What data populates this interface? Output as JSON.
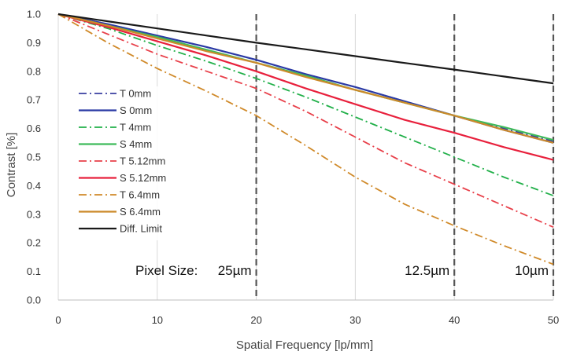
{
  "chart_data": {
    "type": "line",
    "xlabel": "Spatial Frequency [lp/mm]",
    "ylabel": "Contrast [%]",
    "xlim": [
      0,
      50
    ],
    "ylim": [
      0,
      1.0
    ],
    "x_ticks": [
      0,
      10,
      20,
      30,
      40,
      50
    ],
    "y_ticks": [
      0.0,
      0.1,
      0.2,
      0.3,
      0.4,
      0.5,
      0.6,
      0.7,
      0.8,
      0.9,
      1.0
    ],
    "grid": "vertical",
    "legend_position": "left",
    "x": [
      0,
      5,
      10,
      15,
      20,
      25,
      30,
      35,
      40,
      45,
      50
    ],
    "series": [
      {
        "name": "T 0mm",
        "color": "#3a3fa0",
        "dash": "dashdot",
        "values": [
          1.0,
          0.965,
          0.925,
          0.885,
          0.84,
          0.79,
          0.745,
          0.695,
          0.645,
          0.6,
          0.555
        ]
      },
      {
        "name": "S 0mm",
        "color": "#2b3aa5",
        "dash": "solid",
        "values": [
          1.0,
          0.965,
          0.925,
          0.885,
          0.84,
          0.79,
          0.745,
          0.695,
          0.645,
          0.595,
          0.55
        ]
      },
      {
        "name": "T 4mm",
        "color": "#22b04a",
        "dash": "dashdot",
        "values": [
          1.0,
          0.95,
          0.89,
          0.835,
          0.775,
          0.71,
          0.64,
          0.57,
          0.5,
          0.43,
          0.365
        ]
      },
      {
        "name": "S 4mm",
        "color": "#3fba5a",
        "dash": "solid",
        "values": [
          1.0,
          0.96,
          0.92,
          0.875,
          0.83,
          0.785,
          0.735,
          0.69,
          0.645,
          0.605,
          0.56
        ]
      },
      {
        "name": "T 5.12mm",
        "color": "#e8404a",
        "dash": "dashdot",
        "values": [
          1.0,
          0.93,
          0.86,
          0.8,
          0.74,
          0.66,
          0.57,
          0.48,
          0.405,
          0.33,
          0.255
        ]
      },
      {
        "name": "S 5.12mm",
        "color": "#e8203c",
        "dash": "solid",
        "values": [
          1.0,
          0.955,
          0.905,
          0.855,
          0.8,
          0.74,
          0.685,
          0.63,
          0.585,
          0.535,
          0.49
        ]
      },
      {
        "name": "T 6.4mm",
        "color": "#d08a2a",
        "dash": "dashdot",
        "values": [
          1.0,
          0.9,
          0.81,
          0.73,
          0.645,
          0.54,
          0.43,
          0.335,
          0.26,
          0.19,
          0.125
        ]
      },
      {
        "name": "S 6.4mm",
        "color": "#cc8a2a",
        "dash": "solid",
        "values": [
          1.0,
          0.96,
          0.915,
          0.87,
          0.83,
          0.78,
          0.735,
          0.69,
          0.645,
          0.595,
          0.55
        ]
      },
      {
        "name": "Diff. Limit",
        "color": "#1a1a1a",
        "dash": "solid",
        "values": [
          1.0,
          0.975,
          0.95,
          0.925,
          0.9,
          0.877,
          0.853,
          0.829,
          0.806,
          0.782,
          0.758
        ]
      }
    ],
    "reference_lines": [
      {
        "x": 20,
        "label": "25µm"
      },
      {
        "x": 40,
        "label": "12.5µm"
      },
      {
        "x": 50,
        "label": "10µm"
      }
    ],
    "annotation_label": "Pixel Size:"
  }
}
